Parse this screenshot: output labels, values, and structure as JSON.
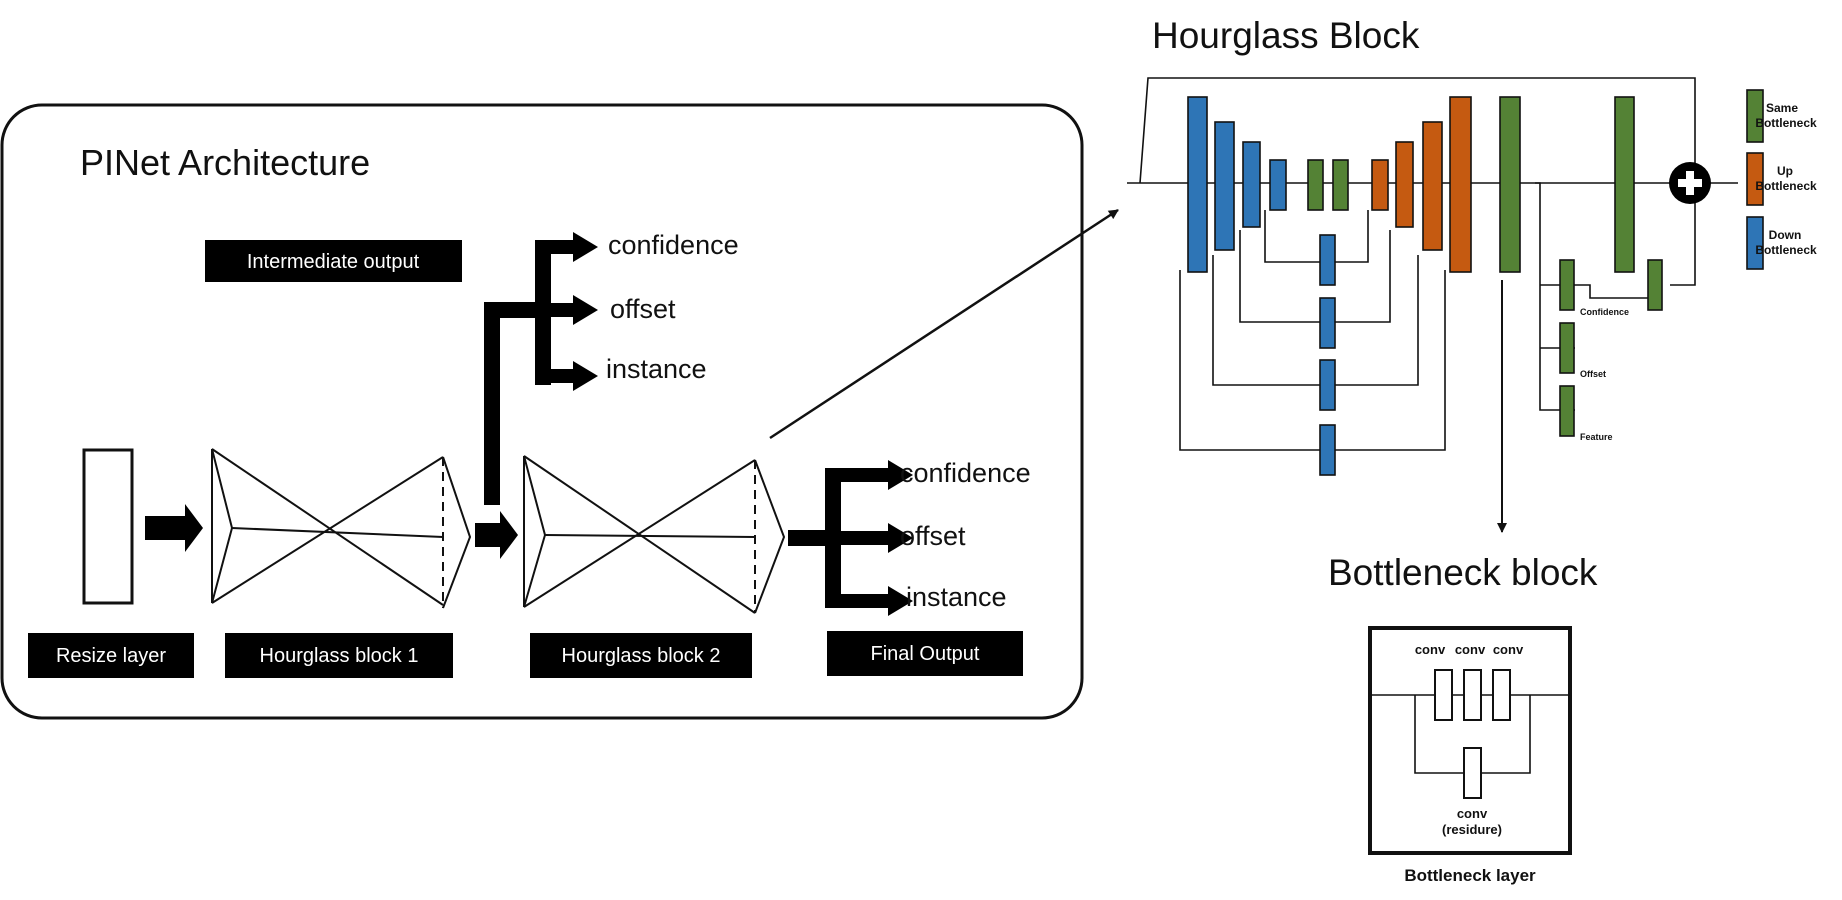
{
  "architecture": {
    "title": "PINet Architecture",
    "intermediate_label": "Intermediate output",
    "resize_label": "Resize layer",
    "hourglass1_label": "Hourglass block 1",
    "hourglass2_label": "Hourglass block 2",
    "final_label": "Final Output",
    "intermediate_outputs": [
      "confidence",
      "offset",
      "instance"
    ],
    "final_outputs": [
      "confidence",
      "offset",
      "instance"
    ]
  },
  "hourglass_block": {
    "title": "Hourglass Block",
    "legend": {
      "same": [
        "Same",
        "Bottleneck"
      ],
      "up": [
        "Up",
        "Bottleneck"
      ],
      "down": [
        "Down",
        "Bottleneck"
      ]
    },
    "heads": [
      "Confidence",
      "Offset",
      "Feature"
    ],
    "colors": {
      "down": "#2e75b6",
      "up": "#c55a11",
      "same": "#548235"
    }
  },
  "bottleneck": {
    "title": "Bottleneck block",
    "conv_labels": [
      "conv",
      "conv",
      "conv"
    ],
    "residue_label": [
      "conv",
      "(residure)"
    ],
    "layer_label": "Bottleneck layer"
  }
}
